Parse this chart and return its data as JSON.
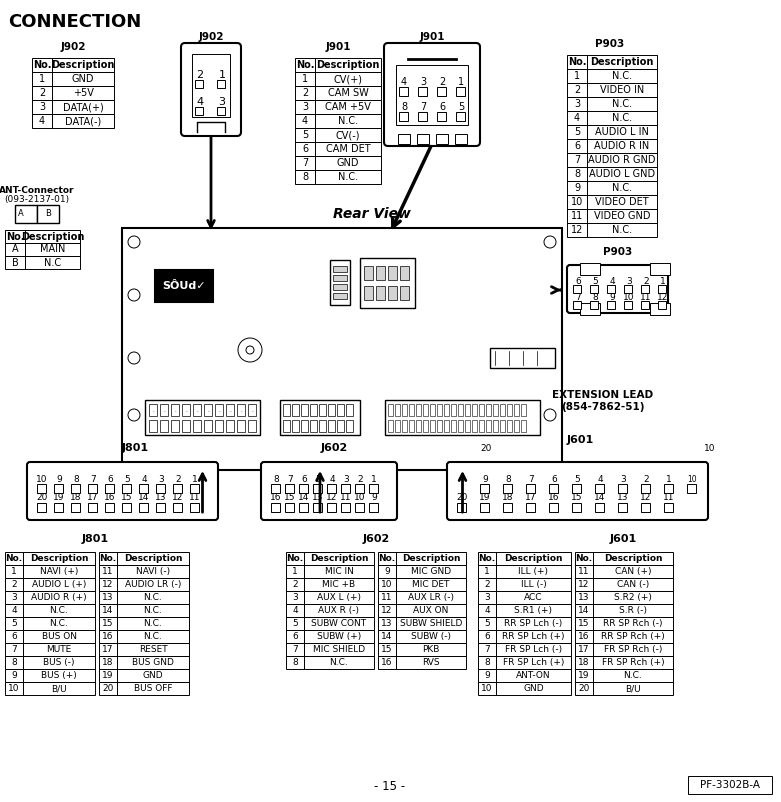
{
  "title": "CONNECTION",
  "page_num": "- 15 -",
  "doc_ref": "PF-3302B-A",
  "bg_color": "#ffffff",
  "j902_table": {
    "label": "J902",
    "rows": [
      [
        "No.",
        "Description"
      ],
      [
        "1",
        "GND"
      ],
      [
        "2",
        "+5V"
      ],
      [
        "3",
        "DATA(+)"
      ],
      [
        "4",
        "DATA(-)"
      ]
    ]
  },
  "j901_table": {
    "label": "J901",
    "rows": [
      [
        "No.",
        "Description"
      ],
      [
        "1",
        "CV(+)"
      ],
      [
        "2",
        "CAM SW"
      ],
      [
        "3",
        "CAM +5V"
      ],
      [
        "4",
        "N.C."
      ],
      [
        "5",
        "CV(-)"
      ],
      [
        "6",
        "CAM DET"
      ],
      [
        "7",
        "GND"
      ],
      [
        "8",
        "N.C."
      ]
    ]
  },
  "p903_table": {
    "label": "P903",
    "rows": [
      [
        "No.",
        "Description"
      ],
      [
        "1",
        "N.C."
      ],
      [
        "2",
        "VIDEO IN"
      ],
      [
        "3",
        "N.C."
      ],
      [
        "4",
        "N.C."
      ],
      [
        "5",
        "AUDIO L IN"
      ],
      [
        "6",
        "AUDIO R IN"
      ],
      [
        "7",
        "AUDIO R GND"
      ],
      [
        "8",
        "AUDIO L GND"
      ],
      [
        "9",
        "N.C."
      ],
      [
        "10",
        "VIDEO DET"
      ],
      [
        "11",
        "VIDEO GND"
      ],
      [
        "12",
        "N.C."
      ]
    ]
  },
  "ant_table": {
    "label": "ANT-Connector\n(093-2137-01)",
    "rows": [
      [
        "No.",
        "Description"
      ],
      [
        "A",
        "MAIN"
      ],
      [
        "B",
        "N.C"
      ]
    ]
  },
  "j801_table": {
    "label": "J801",
    "cols1": [
      [
        "No.",
        "Description"
      ],
      [
        "1",
        "NAVI (+)"
      ],
      [
        "2",
        "AUDIO L (+)"
      ],
      [
        "3",
        "AUDIO R (+)"
      ],
      [
        "4",
        "N.C."
      ],
      [
        "5",
        "N.C."
      ],
      [
        "6",
        "BUS ON"
      ],
      [
        "7",
        "MUTE"
      ],
      [
        "8",
        "BUS (-)"
      ],
      [
        "9",
        "BUS (+)"
      ],
      [
        "10",
        "B/U"
      ]
    ],
    "cols2": [
      [
        "No.",
        "Description"
      ],
      [
        "11",
        "NAVI (-)"
      ],
      [
        "12",
        "AUDIO LR (-)"
      ],
      [
        "13",
        "N.C."
      ],
      [
        "14",
        "N.C."
      ],
      [
        "15",
        "N.C."
      ],
      [
        "16",
        "N.C."
      ],
      [
        "17",
        "RESET"
      ],
      [
        "18",
        "BUS GND"
      ],
      [
        "19",
        "GND"
      ],
      [
        "20",
        "BUS OFF"
      ]
    ]
  },
  "j602_table": {
    "label": "J602",
    "cols1": [
      [
        "No.",
        "Description"
      ],
      [
        "1",
        "MIC IN"
      ],
      [
        "2",
        "MIC +B"
      ],
      [
        "3",
        "AUX L (+)"
      ],
      [
        "4",
        "AUX R (-)"
      ],
      [
        "5",
        "SUBW CONT"
      ],
      [
        "6",
        "SUBW (+)"
      ],
      [
        "7",
        "MIC SHIELD"
      ],
      [
        "8",
        "N.C."
      ]
    ],
    "cols2": [
      [
        "No.",
        "Description"
      ],
      [
        "9",
        "MIC GND"
      ],
      [
        "10",
        "MIC DET"
      ],
      [
        "11",
        "AUX LR (-)"
      ],
      [
        "12",
        "AUX ON"
      ],
      [
        "13",
        "SUBW SHIELD"
      ],
      [
        "14",
        "SUBW (-)"
      ],
      [
        "15",
        "PKB"
      ],
      [
        "16",
        "RVS"
      ]
    ]
  },
  "j601_table": {
    "label": "J601",
    "cols1": [
      [
        "No.",
        "Description"
      ],
      [
        "1",
        "ILL (+)"
      ],
      [
        "2",
        "ILL (-)"
      ],
      [
        "3",
        "ACC"
      ],
      [
        "4",
        "S.R1 (+)"
      ],
      [
        "5",
        "RR SP Lch (-)"
      ],
      [
        "6",
        "RR SP Lch (+)"
      ],
      [
        "7",
        "FR SP Lch (-)"
      ],
      [
        "8",
        "FR SP Lch (+)"
      ],
      [
        "9",
        "ANT-ON"
      ],
      [
        "10",
        "GND"
      ]
    ],
    "cols2": [
      [
        "No.",
        "Description"
      ],
      [
        "11",
        "CAN (+)"
      ],
      [
        "12",
        "CAN (-)"
      ],
      [
        "13",
        "S.R2 (+)"
      ],
      [
        "14",
        "S.R (-)"
      ],
      [
        "15",
        "RR SP Rch (-)"
      ],
      [
        "16",
        "RR SP Rch (+)"
      ],
      [
        "17",
        "FR SP Rch (-)"
      ],
      [
        "18",
        "FR SP Rch (+)"
      ],
      [
        "19",
        "N.C."
      ],
      [
        "20",
        "B/U"
      ]
    ]
  }
}
